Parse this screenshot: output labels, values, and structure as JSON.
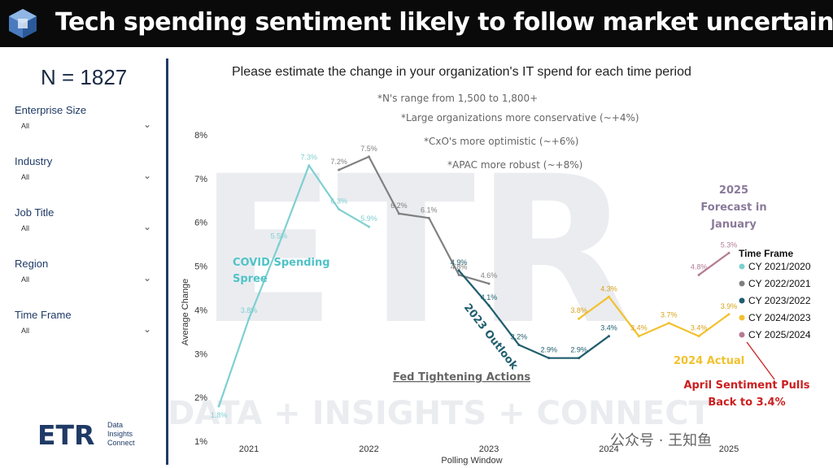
{
  "header": {
    "title": "Tech spending sentiment likely to follow market uncertainty"
  },
  "sidebar": {
    "n_label": "N = 1827",
    "filters": [
      {
        "label": "Enterprise Size",
        "value": "All"
      },
      {
        "label": "Industry",
        "value": "All"
      },
      {
        "label": "Job Title",
        "value": "All"
      },
      {
        "label": "Region",
        "value": "All"
      },
      {
        "label": "Time Frame",
        "value": "All"
      }
    ],
    "logo": {
      "word": "ETR",
      "line1": "Data",
      "line2": "Insights",
      "line3": "Connect"
    }
  },
  "notes": {
    "n_range": "*N's range from 1,500 to 1,800+",
    "large_orgs": "*Large organizations more conservative (~+4%)",
    "cxo": "*CxO's more optimistic (~+6%)",
    "apac": "*APAC more robust (~+8%)"
  },
  "annotations": {
    "covid_line1": "COVID Spending",
    "covid_line2": "Spree",
    "outlook": "2023 Outlook",
    "fed": "Fed Tightening Actions",
    "forecast_line1": "2025",
    "forecast_line2": "Forecast in",
    "forecast_line3": "January",
    "actual_2024": "2024 Actual",
    "april_line1": "April Sentiment Pulls",
    "april_line2": "Back to 3.4%"
  },
  "watermark": {
    "text": "公众号 · 王知鱼",
    "bg": "ETR",
    "bg_tagline": "DATA + INSIGHTS + CONNECT"
  },
  "colors": {
    "title_bg": "#0a0a0a",
    "accent": "#1f3a66",
    "s2021": "#7fcfd0",
    "s2022": "#808080",
    "s2023": "#1f5e6e",
    "s2024": "#f2c12e",
    "s2025": "#b57b93",
    "red": "#cc1f1f"
  },
  "chart_data": {
    "type": "line",
    "title": "Please estimate the change in your organization's IT spend for each time period",
    "xlabel": "Polling Window",
    "ylabel": "Average Change",
    "x_ticks": [
      2021,
      2022,
      2023,
      2024,
      2025
    ],
    "y_ticks": [
      "1%",
      "2%",
      "3%",
      "4%",
      "5%",
      "6%",
      "7%",
      "8%"
    ],
    "ylim": [
      1,
      8
    ],
    "xlim": [
      2021,
      2025
    ],
    "legend_title": "Time Frame",
    "series": [
      {
        "name": "CY 2021/2020",
        "color": "#7fcfd0",
        "points": [
          {
            "x": 2020.75,
            "y": 1.8,
            "label": "1.8%"
          },
          {
            "x": 2021.0,
            "y": 3.8,
            "label": "3.8%"
          },
          {
            "x": 2021.25,
            "y": 5.5,
            "label": "5.5%"
          },
          {
            "x": 2021.5,
            "y": 7.3,
            "label": "7.3%"
          },
          {
            "x": 2021.75,
            "y": 6.3,
            "label": "6.3%"
          },
          {
            "x": 2022.0,
            "y": 5.9,
            "label": "5.9%"
          }
        ]
      },
      {
        "name": "CY 2022/2021",
        "color": "#808080",
        "points": [
          {
            "x": 2021.75,
            "y": 7.2,
            "label": "7.2%"
          },
          {
            "x": 2022.0,
            "y": 7.5,
            "label": "7.5%"
          },
          {
            "x": 2022.25,
            "y": 6.2,
            "label": "6.2%"
          },
          {
            "x": 2022.5,
            "y": 6.1,
            "label": "6.1%"
          },
          {
            "x": 2022.75,
            "y": 4.8,
            "label": "4.8%"
          },
          {
            "x": 2023.0,
            "y": 4.6,
            "label": "4.6%"
          }
        ]
      },
      {
        "name": "CY 2023/2022",
        "color": "#1f5e6e",
        "points": [
          {
            "x": 2022.75,
            "y": 4.9,
            "label": "4.9%"
          },
          {
            "x": 2023.0,
            "y": 4.1,
            "label": "4.1%"
          },
          {
            "x": 2023.25,
            "y": 3.2,
            "label": "3.2%"
          },
          {
            "x": 2023.5,
            "y": 2.9,
            "label": "2.9%"
          },
          {
            "x": 2023.75,
            "y": 2.9,
            "label": "2.9%"
          },
          {
            "x": 2024.0,
            "y": 3.4,
            "label": "3.4%"
          }
        ]
      },
      {
        "name": "CY 2024/2023",
        "color": "#f2c12e",
        "points": [
          {
            "x": 2023.75,
            "y": 3.8,
            "label": "3.8%"
          },
          {
            "x": 2024.0,
            "y": 4.3,
            "label": "4.3%"
          },
          {
            "x": 2024.25,
            "y": 3.4,
            "label": "3.4%"
          },
          {
            "x": 2024.5,
            "y": 3.7,
            "label": "3.7%"
          },
          {
            "x": 2024.75,
            "y": 3.4,
            "label": "3.4%"
          },
          {
            "x": 2025.0,
            "y": 3.9,
            "label": "3.9%"
          }
        ]
      },
      {
        "name": "CY 2025/2024",
        "color": "#b57b93",
        "points": [
          {
            "x": 2024.75,
            "y": 4.8,
            "label": "4.8%"
          },
          {
            "x": 2025.0,
            "y": 5.3,
            "label": "5.3%"
          }
        ]
      }
    ]
  }
}
